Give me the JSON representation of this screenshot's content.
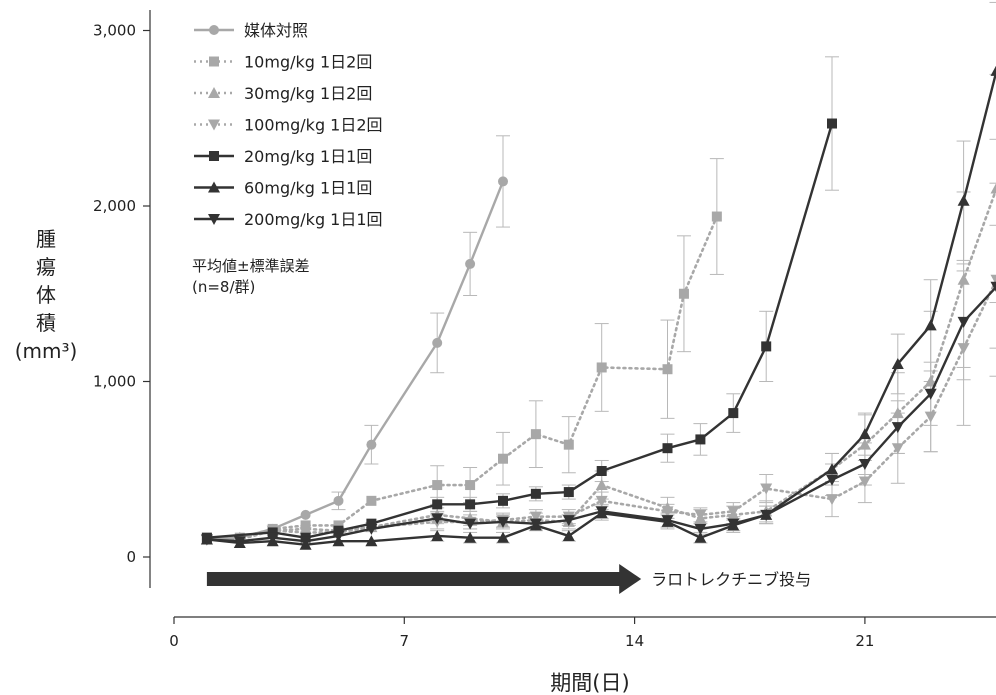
{
  "chart_data": {
    "type": "line",
    "xlabel": "期間(日)",
    "ylabel_lines": [
      "腫",
      "瘍",
      "体",
      "積",
      "(mm³)"
    ],
    "xlim": [
      0,
      25
    ],
    "ylim": [
      0,
      3000
    ],
    "xticks": [
      0,
      7,
      14,
      21
    ],
    "xtick_labels": [
      "0",
      "7",
      "14",
      "21"
    ],
    "yticks": [
      0,
      1000,
      2000,
      3000
    ],
    "ytick_labels": [
      "0",
      "1,000",
      "2,000",
      "3,000"
    ],
    "legend_position": "top-left",
    "note_lines": [
      "平均値±標準誤差",
      "(n=8/群)"
    ],
    "arrow": {
      "label": "ラロトレクチニブ投与",
      "x_start": 1,
      "x_end": 14.2
    },
    "colors": {
      "light": "#a8a8a8",
      "dark": "#333333"
    },
    "series": [
      {
        "name": "媒体対照",
        "color": "#a8a8a8",
        "style": "solid",
        "marker": "circle",
        "x": [
          1,
          2,
          3,
          4,
          5,
          6,
          8,
          9,
          10
        ],
        "y": [
          100,
          110,
          160,
          240,
          320,
          640,
          1220,
          1670,
          2140
        ],
        "err": [
          0,
          0,
          0,
          0,
          50,
          110,
          170,
          180,
          260
        ]
      },
      {
        "name": "10mg/kg 1日2回",
        "color": "#a8a8a8",
        "style": "dotted",
        "marker": "square",
        "x": [
          1,
          2,
          3,
          4,
          5,
          6,
          8,
          9,
          10,
          11,
          12,
          13,
          15,
          15.5,
          16.5
        ],
        "y": [
          110,
          110,
          160,
          180,
          180,
          320,
          410,
          410,
          560,
          700,
          640,
          1080,
          1070,
          1500,
          1940
        ],
        "err": [
          0,
          0,
          0,
          0,
          0,
          0,
          110,
          100,
          150,
          190,
          160,
          250,
          280,
          330,
          330
        ]
      },
      {
        "name": "30mg/kg 1日2回",
        "color": "#a8a8a8",
        "style": "dotted",
        "marker": "triangle-up",
        "x": [
          1,
          2,
          3,
          4,
          5,
          6,
          8,
          9,
          10,
          11,
          12,
          13,
          15,
          16,
          17,
          18,
          20,
          21,
          22,
          23,
          24,
          25
        ],
        "y": [
          100,
          110,
          150,
          160,
          150,
          170,
          240,
          220,
          200,
          210,
          200,
          410,
          280,
          220,
          240,
          260,
          500,
          640,
          820,
          1000,
          1580,
          2100
        ],
        "err": [
          0,
          0,
          0,
          0,
          0,
          0,
          40,
          40,
          40,
          40,
          40,
          80,
          60,
          50,
          50,
          60,
          90,
          170,
          230,
          400,
          500,
          650
        ]
      },
      {
        "name": "100mg/kg 1日2回",
        "color": "#a8a8a8",
        "style": "dotted",
        "marker": "triangle-down",
        "x": [
          1,
          2,
          3,
          4,
          5,
          6,
          8,
          9,
          10,
          11,
          12,
          13,
          15,
          16,
          17,
          18,
          20,
          21,
          22,
          23,
          24,
          25
        ],
        "y": [
          100,
          100,
          150,
          140,
          140,
          170,
          200,
          200,
          210,
          230,
          230,
          320,
          260,
          240,
          260,
          390,
          330,
          430,
          620,
          800,
          1190,
          1580
        ],
        "err": [
          0,
          0,
          0,
          0,
          0,
          0,
          40,
          40,
          40,
          40,
          40,
          50,
          40,
          40,
          50,
          80,
          100,
          120,
          200,
          200,
          440,
          550
        ]
      },
      {
        "name": "20mg/kg 1日1回",
        "color": "#333333",
        "style": "solid",
        "marker": "square",
        "x": [
          1,
          3,
          4,
          5,
          6,
          8,
          9,
          10,
          11,
          12,
          13,
          15,
          16,
          17,
          18,
          20
        ],
        "y": [
          110,
          140,
          110,
          150,
          190,
          300,
          300,
          320,
          360,
          370,
          490,
          620,
          670,
          820,
          1200,
          2470
        ],
        "err": [
          0,
          0,
          0,
          0,
          0,
          40,
          40,
          40,
          40,
          40,
          60,
          80,
          90,
          110,
          200,
          380
        ]
      },
      {
        "name": "60mg/kg 1日1回",
        "color": "#333333",
        "style": "solid",
        "marker": "triangle-up",
        "x": [
          1,
          2,
          3,
          4,
          5,
          6,
          8,
          9,
          10,
          11,
          12,
          13,
          15,
          16,
          17,
          18,
          20,
          21,
          22,
          23,
          24,
          25
        ],
        "y": [
          100,
          80,
          90,
          70,
          90,
          90,
          120,
          110,
          110,
          180,
          120,
          250,
          200,
          110,
          180,
          240,
          500,
          700,
          1100,
          1320,
          2030,
          2770
        ],
        "err": [
          0,
          0,
          0,
          0,
          0,
          0,
          30,
          30,
          30,
          30,
          30,
          40,
          40,
          30,
          40,
          50,
          90,
          120,
          170,
          260,
          340,
          390
        ]
      },
      {
        "name": "200mg/kg 1日1回",
        "color": "#333333",
        "style": "solid",
        "marker": "triangle-down",
        "x": [
          1,
          2,
          3,
          4,
          5,
          6,
          8,
          9,
          10,
          11,
          12,
          13,
          15,
          16,
          17,
          18,
          20,
          21,
          22,
          23,
          24,
          25
        ],
        "y": [
          100,
          90,
          110,
          90,
          120,
          160,
          220,
          190,
          200,
          190,
          210,
          260,
          210,
          160,
          190,
          240,
          440,
          530,
          740,
          930,
          1340,
          1540
        ],
        "err": [
          0,
          0,
          0,
          0,
          0,
          0,
          30,
          30,
          30,
          30,
          30,
          40,
          40,
          30,
          40,
          50,
          90,
          120,
          150,
          180,
          330,
          350
        ]
      }
    ]
  }
}
